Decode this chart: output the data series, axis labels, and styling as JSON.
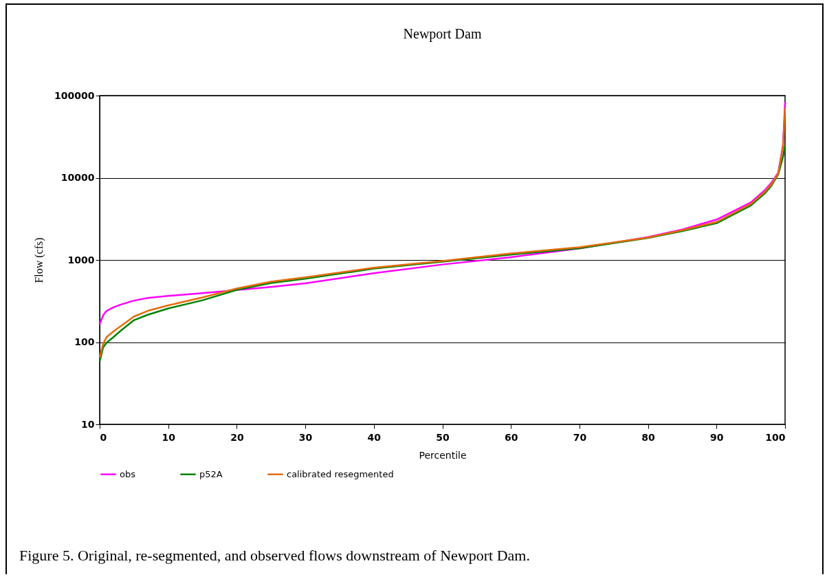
{
  "chart_data": {
    "type": "line",
    "title": "Newport Dam",
    "xlabel": "Percentile",
    "ylabel": "Flow (cfs)",
    "annotations": [
      "Figure 5. Original, re-segmented, and observed flows downstream of Newport Dam."
    ],
    "x": [
      0,
      0.5,
      1,
      2,
      3,
      5,
      7,
      10,
      15,
      20,
      25,
      30,
      40,
      50,
      60,
      70,
      80,
      85,
      90,
      95,
      97,
      98,
      99,
      99.7,
      100
    ],
    "series": [
      {
        "name": "obs",
        "color": "#ff00ff",
        "values": [
          165,
          212,
          240,
          265,
          285,
          320,
          345,
          365,
          395,
          430,
          470,
          520,
          690,
          880,
          1080,
          1380,
          1900,
          2350,
          3100,
          5000,
          7000,
          8700,
          11500,
          25000,
          83000
        ]
      },
      {
        "name": "p52A",
        "color": "#008000",
        "values": [
          58,
          86,
          98,
          115,
          136,
          185,
          215,
          257,
          323,
          432,
          524,
          590,
          785,
          955,
          1160,
          1390,
          1850,
          2250,
          2800,
          4600,
          6400,
          8000,
          11000,
          18000,
          25000
        ]
      },
      {
        "name": "calibrated resegmented",
        "color": "#e46c0a",
        "values": [
          65,
          95,
          115,
          135,
          155,
          205,
          240,
          280,
          350,
          450,
          545,
          615,
          805,
          970,
          1200,
          1430,
          1870,
          2300,
          2900,
          4800,
          6700,
          8300,
          11300,
          24000,
          71000
        ]
      }
    ],
    "xlim": [
      0,
      100
    ],
    "xticks": [
      0,
      10,
      20,
      30,
      40,
      50,
      60,
      70,
      80,
      90,
      100
    ],
    "ylim": [
      10,
      100000
    ],
    "yticks": [
      10,
      100,
      1000,
      10000,
      100000
    ],
    "log": "y",
    "grid": "y",
    "legend": "bottom",
    "marker": "none",
    "line_style": "solid"
  }
}
